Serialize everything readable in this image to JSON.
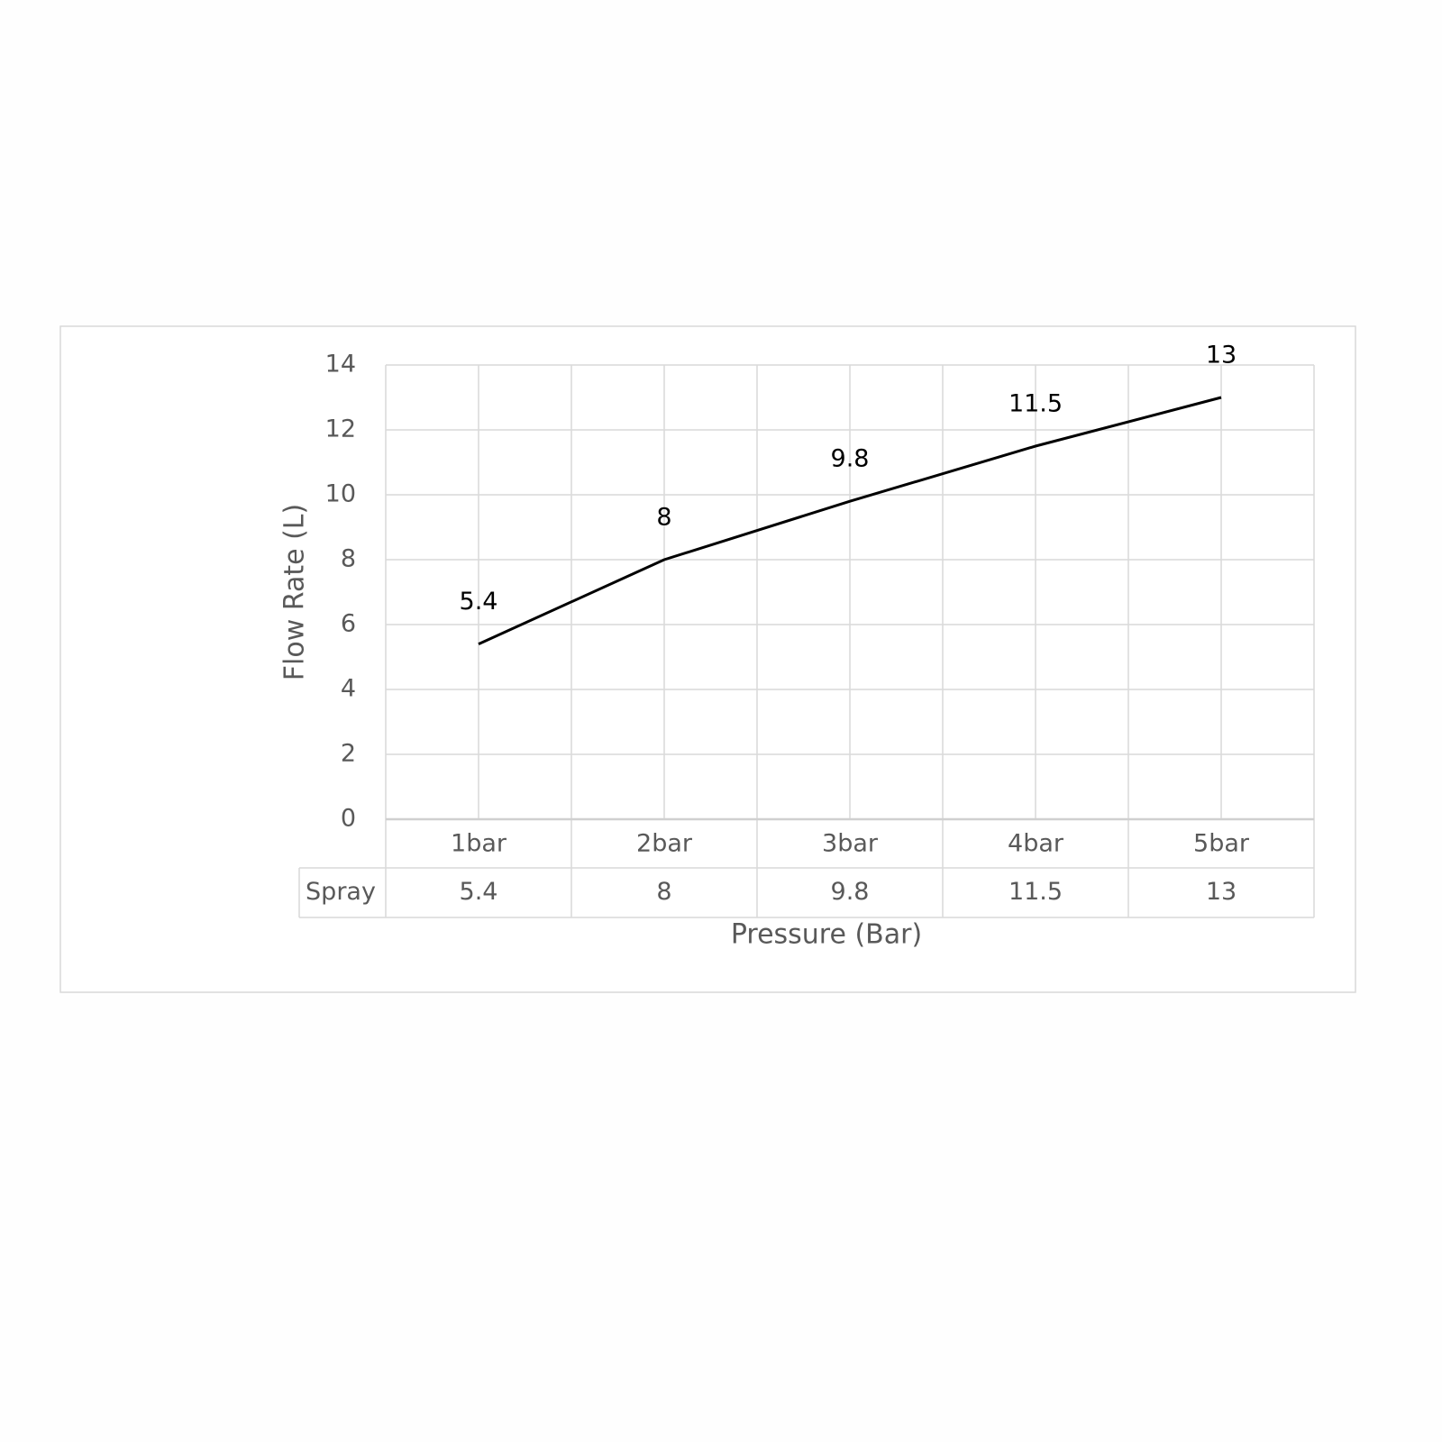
{
  "chart_data": {
    "type": "line",
    "x_label": "Pressure (Bar)",
    "y_label": "Flow Rate (L)",
    "categories": [
      "1bar",
      "2bar",
      "3bar",
      "4bar",
      "5bar"
    ],
    "series": [
      {
        "name": "Spray",
        "color": "#000000",
        "values": [
          5.4,
          8,
          9.8,
          11.5,
          13
        ]
      }
    ],
    "ylim": [
      0,
      14
    ],
    "yticks": [
      0,
      2,
      4,
      6,
      8,
      10,
      12,
      14
    ],
    "grid": true,
    "data_labels": true,
    "data_table": true
  }
}
